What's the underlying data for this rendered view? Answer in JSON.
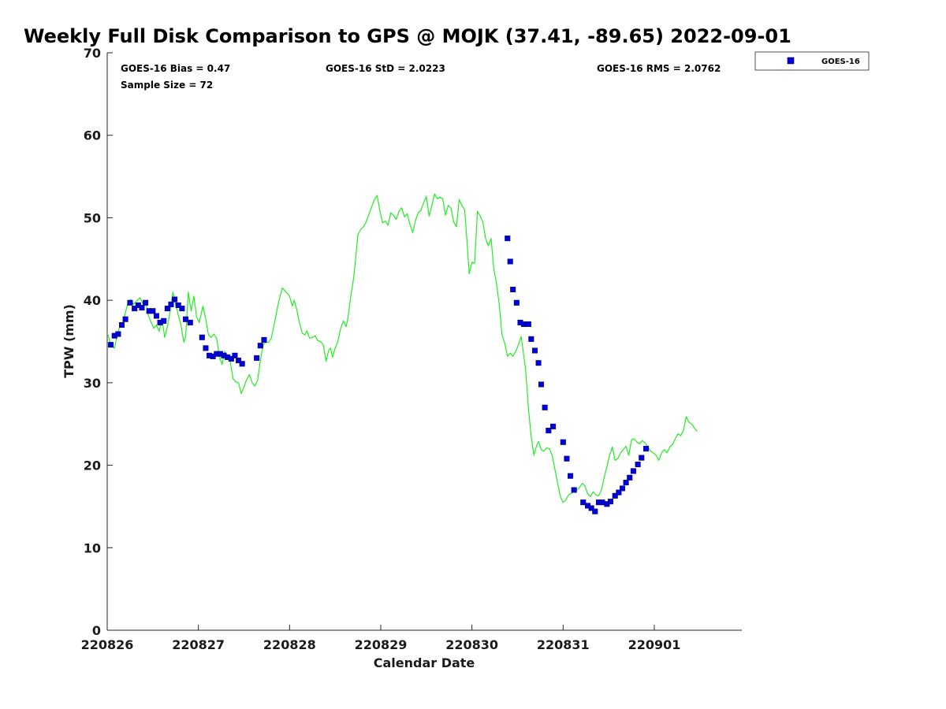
{
  "chart_data": {
    "type": "line",
    "title": "Weekly Full Disk Comparison to GPS @ MOJK (37.41, -89.65) 2022-09-01",
    "xlabel": "Calendar Date",
    "ylabel": "TPW (mm)",
    "xlim": [
      0,
      6.96
    ],
    "ylim": [
      0,
      70
    ],
    "grid": false,
    "legend_position": "top-right",
    "x_ticks": [
      {
        "x": 0,
        "label": "220826"
      },
      {
        "x": 1,
        "label": "220827"
      },
      {
        "x": 2,
        "label": "220828"
      },
      {
        "x": 3,
        "label": "220829"
      },
      {
        "x": 4,
        "label": "220830"
      },
      {
        "x": 5,
        "label": "220831"
      },
      {
        "x": 6,
        "label": "220901"
      }
    ],
    "y_ticks": [
      0,
      10,
      20,
      30,
      40,
      50,
      60,
      70
    ],
    "stats": {
      "bias": "GOES-16 Bias = 0.47",
      "sample_size": "Sample Size = 72",
      "std": "GOES-16 StD = 2.0223",
      "rms": "GOES-16 RMS = 2.0762"
    },
    "legend": [
      {
        "label": "GOES-16",
        "color": "#0000dd",
        "marker": "square"
      }
    ],
    "series": [
      {
        "kind": "line",
        "color": "#22ee22",
        "points": [
          [
            0.01,
            35.8
          ],
          [
            0.04,
            34.5
          ],
          [
            0.08,
            34.2
          ],
          [
            0.11,
            35.8
          ],
          [
            0.14,
            36.9
          ],
          [
            0.17,
            37.2
          ],
          [
            0.2,
            38.5
          ],
          [
            0.23,
            39.8
          ],
          [
            0.26,
            40.1
          ],
          [
            0.29,
            39.5
          ],
          [
            0.32,
            39.9
          ],
          [
            0.36,
            40.3
          ],
          [
            0.39,
            39.6
          ],
          [
            0.42,
            39.9
          ],
          [
            0.45,
            38.2
          ],
          [
            0.48,
            37.4
          ],
          [
            0.51,
            36.6
          ],
          [
            0.54,
            37.0
          ],
          [
            0.57,
            36.2
          ],
          [
            0.6,
            37.8
          ],
          [
            0.63,
            35.5
          ],
          [
            0.66,
            36.8
          ],
          [
            0.69,
            38.6
          ],
          [
            0.72,
            41.0
          ],
          [
            0.75,
            39.5
          ],
          [
            0.78,
            38.2
          ],
          [
            0.81,
            36.9
          ],
          [
            0.84,
            34.9
          ],
          [
            0.86,
            35.6
          ],
          [
            0.89,
            41.0
          ],
          [
            0.92,
            38.7
          ],
          [
            0.95,
            40.5
          ],
          [
            0.98,
            38.0
          ],
          [
            1.01,
            37.3
          ],
          [
            1.05,
            39.3
          ],
          [
            1.08,
            37.8
          ],
          [
            1.11,
            35.8
          ],
          [
            1.14,
            35.5
          ],
          [
            1.17,
            35.9
          ],
          [
            1.2,
            35.4
          ],
          [
            1.23,
            33.2
          ],
          [
            1.26,
            32.2
          ],
          [
            1.29,
            33.8
          ],
          [
            1.32,
            33.1
          ],
          [
            1.35,
            32.5
          ],
          [
            1.38,
            30.5
          ],
          [
            1.41,
            30.1
          ],
          [
            1.44,
            30.0
          ],
          [
            1.47,
            28.7
          ],
          [
            1.5,
            29.5
          ],
          [
            1.53,
            30.4
          ],
          [
            1.56,
            31.0
          ],
          [
            1.59,
            30.0
          ],
          [
            1.62,
            29.6
          ],
          [
            1.65,
            30.3
          ],
          [
            1.68,
            32.7
          ],
          [
            1.71,
            34.6
          ],
          [
            1.74,
            34.9
          ],
          [
            1.77,
            34.9
          ],
          [
            1.8,
            35.4
          ],
          [
            1.84,
            37.5
          ],
          [
            1.88,
            39.8
          ],
          [
            1.92,
            41.5
          ],
          [
            1.96,
            41.0
          ],
          [
            2.0,
            40.5
          ],
          [
            2.03,
            39.3
          ],
          [
            2.05,
            40.0
          ],
          [
            2.08,
            38.8
          ],
          [
            2.11,
            37.2
          ],
          [
            2.14,
            36.0
          ],
          [
            2.17,
            35.8
          ],
          [
            2.19,
            36.3
          ],
          [
            2.22,
            35.4
          ],
          [
            2.25,
            35.5
          ],
          [
            2.28,
            35.7
          ],
          [
            2.31,
            35.1
          ],
          [
            2.34,
            35.0
          ],
          [
            2.37,
            34.6
          ],
          [
            2.4,
            32.6
          ],
          [
            2.43,
            34.0
          ],
          [
            2.45,
            34.2
          ],
          [
            2.47,
            33.1
          ],
          [
            2.5,
            34.2
          ],
          [
            2.53,
            35.0
          ],
          [
            2.56,
            36.6
          ],
          [
            2.59,
            37.5
          ],
          [
            2.62,
            36.8
          ],
          [
            2.64,
            37.8
          ],
          [
            2.67,
            40.4
          ],
          [
            2.7,
            42.5
          ],
          [
            2.72,
            44.5
          ],
          [
            2.75,
            48.0
          ],
          [
            2.78,
            48.6
          ],
          [
            2.81,
            48.9
          ],
          [
            2.84,
            49.5
          ],
          [
            2.87,
            50.4
          ],
          [
            2.9,
            51.3
          ],
          [
            2.93,
            52.2
          ],
          [
            2.96,
            52.7
          ],
          [
            2.99,
            50.9
          ],
          [
            3.02,
            49.4
          ],
          [
            3.05,
            49.6
          ],
          [
            3.08,
            49.1
          ],
          [
            3.11,
            50.6
          ],
          [
            3.14,
            50.3
          ],
          [
            3.17,
            49.8
          ],
          [
            3.2,
            50.8
          ],
          [
            3.23,
            51.2
          ],
          [
            3.26,
            50.1
          ],
          [
            3.29,
            50.5
          ],
          [
            3.32,
            49.2
          ],
          [
            3.35,
            48.2
          ],
          [
            3.38,
            49.6
          ],
          [
            3.41,
            50.6
          ],
          [
            3.44,
            50.9
          ],
          [
            3.47,
            51.8
          ],
          [
            3.5,
            52.6
          ],
          [
            3.53,
            50.2
          ],
          [
            3.56,
            51.5
          ],
          [
            3.59,
            52.9
          ],
          [
            3.62,
            52.3
          ],
          [
            3.65,
            52.5
          ],
          [
            3.68,
            52.3
          ],
          [
            3.71,
            50.3
          ],
          [
            3.74,
            51.5
          ],
          [
            3.77,
            51.2
          ],
          [
            3.8,
            49.5
          ],
          [
            3.83,
            48.9
          ],
          [
            3.86,
            52.2
          ],
          [
            3.89,
            51.5
          ],
          [
            3.92,
            51.0
          ],
          [
            3.95,
            46.5
          ],
          [
            3.97,
            43.2
          ],
          [
            4.0,
            44.6
          ],
          [
            4.03,
            44.5
          ],
          [
            4.06,
            50.8
          ],
          [
            4.09,
            50.2
          ],
          [
            4.12,
            49.5
          ],
          [
            4.15,
            47.5
          ],
          [
            4.18,
            46.6
          ],
          [
            4.21,
            47.5
          ],
          [
            4.24,
            43.8
          ],
          [
            4.27,
            42.0
          ],
          [
            4.3,
            39.5
          ],
          [
            4.33,
            35.8
          ],
          [
            4.36,
            34.8
          ],
          [
            4.39,
            33.2
          ],
          [
            4.42,
            33.6
          ],
          [
            4.45,
            33.2
          ],
          [
            4.48,
            33.8
          ],
          [
            4.51,
            34.6
          ],
          [
            4.54,
            35.6
          ],
          [
            4.56,
            34.0
          ],
          [
            4.59,
            31.5
          ],
          [
            4.62,
            26.8
          ],
          [
            4.65,
            23.5
          ],
          [
            4.68,
            21.2
          ],
          [
            4.71,
            22.4
          ],
          [
            4.73,
            22.9
          ],
          [
            4.76,
            21.9
          ],
          [
            4.79,
            21.7
          ],
          [
            4.82,
            22.1
          ],
          [
            4.85,
            22.0
          ],
          [
            4.88,
            21.2
          ],
          [
            4.91,
            19.5
          ],
          [
            4.94,
            17.8
          ],
          [
            4.97,
            16.2
          ],
          [
            5.0,
            15.5
          ],
          [
            5.03,
            15.8
          ],
          [
            5.06,
            16.4
          ],
          [
            5.09,
            16.6
          ],
          [
            5.12,
            16.8
          ],
          [
            5.15,
            17.0
          ],
          [
            5.18,
            17.3
          ],
          [
            5.21,
            17.8
          ],
          [
            5.24,
            17.5
          ],
          [
            5.27,
            16.5
          ],
          [
            5.3,
            16.2
          ],
          [
            5.33,
            16.8
          ],
          [
            5.36,
            16.4
          ],
          [
            5.39,
            16.3
          ],
          [
            5.42,
            17.0
          ],
          [
            5.45,
            18.5
          ],
          [
            5.48,
            19.8
          ],
          [
            5.51,
            21.2
          ],
          [
            5.54,
            22.2
          ],
          [
            5.57,
            20.6
          ],
          [
            5.6,
            20.8
          ],
          [
            5.63,
            21.5
          ],
          [
            5.66,
            21.9
          ],
          [
            5.69,
            22.3
          ],
          [
            5.72,
            21.2
          ],
          [
            5.75,
            23.1
          ],
          [
            5.78,
            23.2
          ],
          [
            5.81,
            22.8
          ],
          [
            5.84,
            22.6
          ],
          [
            5.87,
            23.0
          ],
          [
            5.9,
            22.7
          ],
          [
            5.93,
            22.2
          ],
          [
            5.96,
            21.7
          ],
          [
            5.99,
            21.5
          ],
          [
            6.02,
            21.2
          ],
          [
            6.05,
            20.6
          ],
          [
            6.08,
            21.5
          ],
          [
            6.11,
            21.9
          ],
          [
            6.14,
            21.5
          ],
          [
            6.17,
            22.2
          ],
          [
            6.2,
            22.5
          ],
          [
            6.23,
            23.2
          ],
          [
            6.26,
            23.8
          ],
          [
            6.29,
            23.6
          ],
          [
            6.32,
            24.2
          ],
          [
            6.35,
            25.9
          ],
          [
            6.38,
            25.2
          ],
          [
            6.41,
            25.0
          ],
          [
            6.44,
            24.5
          ],
          [
            6.47,
            24.1
          ]
        ]
      },
      {
        "kind": "scatter",
        "name": "GOES-16",
        "color": "#0000dd",
        "points": [
          [
            0.04,
            34.6
          ],
          [
            0.08,
            35.7
          ],
          [
            0.12,
            35.9
          ],
          [
            0.16,
            37.0
          ],
          [
            0.2,
            37.7
          ],
          [
            0.25,
            39.7
          ],
          [
            0.3,
            39.0
          ],
          [
            0.34,
            39.4
          ],
          [
            0.38,
            39.1
          ],
          [
            0.42,
            39.7
          ],
          [
            0.46,
            38.7
          ],
          [
            0.5,
            38.7
          ],
          [
            0.54,
            38.1
          ],
          [
            0.58,
            37.3
          ],
          [
            0.62,
            37.5
          ],
          [
            0.66,
            39.0
          ],
          [
            0.7,
            39.5
          ],
          [
            0.74,
            40.1
          ],
          [
            0.78,
            39.4
          ],
          [
            0.82,
            39.0
          ],
          [
            0.86,
            37.7
          ],
          [
            0.91,
            37.3
          ],
          [
            1.04,
            35.5
          ],
          [
            1.08,
            34.2
          ],
          [
            1.12,
            33.3
          ],
          [
            1.16,
            33.2
          ],
          [
            1.2,
            33.5
          ],
          [
            1.24,
            33.5
          ],
          [
            1.28,
            33.3
          ],
          [
            1.32,
            33.1
          ],
          [
            1.36,
            32.9
          ],
          [
            1.4,
            33.3
          ],
          [
            1.44,
            32.7
          ],
          [
            1.48,
            32.3
          ],
          [
            1.64,
            33.0
          ],
          [
            1.68,
            34.5
          ],
          [
            1.72,
            35.2
          ],
          [
            4.39,
            47.5
          ],
          [
            4.42,
            44.7
          ],
          [
            4.45,
            41.3
          ],
          [
            4.49,
            39.7
          ],
          [
            4.53,
            37.3
          ],
          [
            4.57,
            37.1
          ],
          [
            4.62,
            37.1
          ],
          [
            4.65,
            35.3
          ],
          [
            4.69,
            33.9
          ],
          [
            4.73,
            32.4
          ],
          [
            4.76,
            29.8
          ],
          [
            4.8,
            27.0
          ],
          [
            4.84,
            24.2
          ],
          [
            4.89,
            24.7
          ],
          [
            5.0,
            22.8
          ],
          [
            5.04,
            20.8
          ],
          [
            5.08,
            18.7
          ],
          [
            5.12,
            17.0
          ],
          [
            5.22,
            15.5
          ],
          [
            5.27,
            15.1
          ],
          [
            5.31,
            14.8
          ],
          [
            5.35,
            14.4
          ],
          [
            5.39,
            15.5
          ],
          [
            5.43,
            15.5
          ],
          [
            5.48,
            15.3
          ],
          [
            5.52,
            15.6
          ],
          [
            5.57,
            16.3
          ],
          [
            5.61,
            16.7
          ],
          [
            5.65,
            17.2
          ],
          [
            5.69,
            17.9
          ],
          [
            5.73,
            18.5
          ],
          [
            5.77,
            19.3
          ],
          [
            5.82,
            20.1
          ],
          [
            5.86,
            20.9
          ],
          [
            5.91,
            22.0
          ]
        ]
      }
    ]
  }
}
